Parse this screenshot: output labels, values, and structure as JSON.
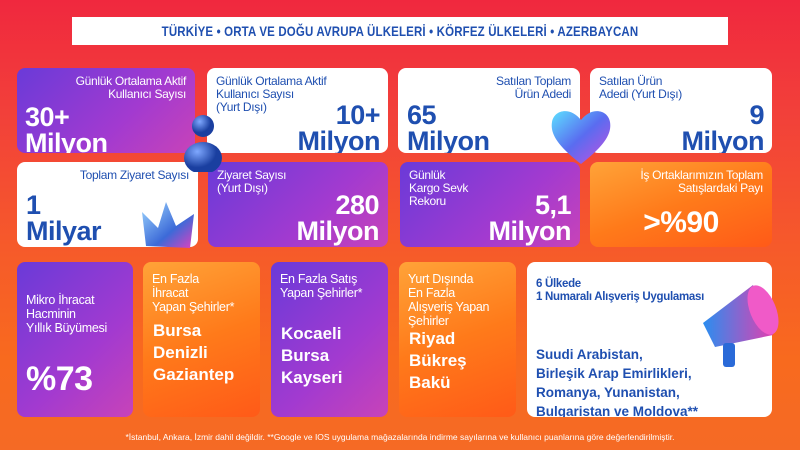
{
  "banner": {
    "text": "TÜRKİYE • ORTA VE DOĞU AVRUPA ÜLKELERİ • KÖRFEZ ÜLKELERİ • AZERBAYCAN"
  },
  "row1": [
    {
      "label": [
        "Günlük Ortalama Aktif",
        "Kullanıcı Sayısı"
      ],
      "value": "30+",
      "unit": "Milyon"
    },
    {
      "label": [
        "Günlük Ortalama Aktif",
        "Kullanıcı Sayısı",
        "(Yurt Dışı)"
      ],
      "value": "10+",
      "unit": "Milyon"
    },
    {
      "label": [
        "Satılan Toplam",
        "Ürün Adedi"
      ],
      "value": "65",
      "unit": "Milyon"
    },
    {
      "label": [
        "Satılan Ürün",
        "Adedi (Yurt Dışı)"
      ],
      "value": "9",
      "unit": "Milyon"
    }
  ],
  "row2": [
    {
      "label": [
        "Toplam Ziyaret Sayısı"
      ],
      "value": "1",
      "unit": "Milyar"
    },
    {
      "label": [
        "Ziyaret Sayısı",
        "(Yurt Dışı)"
      ],
      "value": "280",
      "unit": "Milyon"
    },
    {
      "label": [
        "Günlük",
        "Kargo Sevk",
        "Rekoru"
      ],
      "value": "5,1",
      "unit": "Milyon"
    },
    {
      "label": [
        "İş Ortaklarımızın Toplam",
        "Satışlardaki Payı"
      ],
      "value": ">%90"
    }
  ],
  "row3": [
    {
      "label": [
        "Mikro İhracat",
        "Hacminin",
        "Yıllık Büyümesi"
      ],
      "value": "%73"
    },
    {
      "label": [
        "En Fazla",
        "İhracat",
        "Yapan Şehirler*"
      ],
      "cities": [
        "Bursa",
        "Denizli",
        "Gaziantep"
      ]
    },
    {
      "label": [
        "En Fazla Satış",
        "Yapan Şehirler*"
      ],
      "cities": [
        "Kocaeli",
        "Bursa",
        "Kayseri"
      ]
    },
    {
      "label": [
        "Yurt Dışında",
        "En Fazla",
        "Alışveriş Yapan",
        "Şehirler"
      ],
      "cities": [
        "Riyad",
        "Bükreş",
        "Bakü"
      ]
    },
    {
      "label": [
        "6 Ülkede",
        "1 Numaralı Alışveriş Uygulaması"
      ],
      "countries": [
        "Suudi Arabistan,",
        "Birleşik Arap Emirlikleri,",
        "Romanya, Yunanistan,",
        "Bulgaristan ve Moldova**"
      ]
    }
  ],
  "footer": "*İstanbul, Ankara, İzmir dahil değildir. **Google ve IOS uygulama mağazalarında indirme sayılarına ve kullanıcı puanlarına göre değerlendirilmiştir.",
  "colors": {
    "blue": "#1f4fb0",
    "purple": "#7a3ad8",
    "orange": "#ff7a1a",
    "red": "#f0283e"
  },
  "icons": [
    "person-icon",
    "heart-icon",
    "crown-icon",
    "megaphone-icon"
  ]
}
